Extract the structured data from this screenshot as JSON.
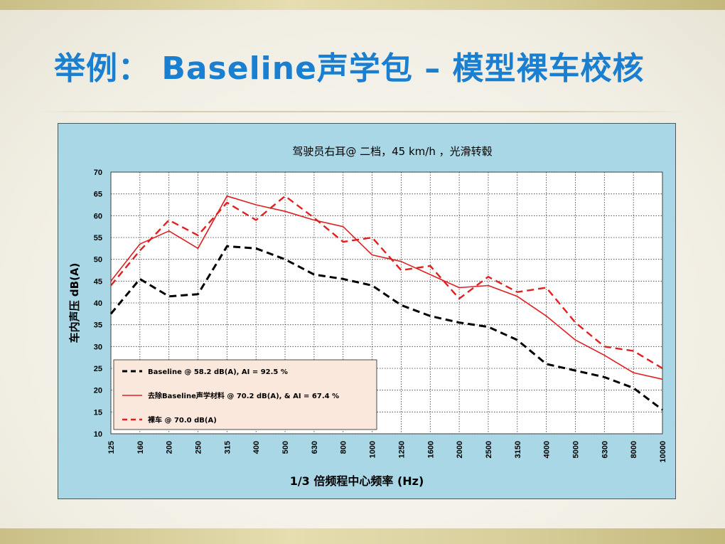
{
  "slide": {
    "title": "举例： Baseline声学包 – 模型裸车校核"
  },
  "colors": {
    "chart_background": "#a9d7e6",
    "plot_background": "#ffffff",
    "legend_background": "#fbe8dc",
    "title_color": "#1a7fd0",
    "series_baseline": "#000000",
    "series_removed": "#e02020",
    "series_bare": "#e02020"
  },
  "chart_data": {
    "type": "line",
    "title": "驾驶员右耳@  二档，45 km/h  ，光滑转毂",
    "xlabel": "1/3 倍频程中心频率 (Hz)",
    "ylabel": "车内声压  dB(A)",
    "categories": [
      "125",
      "160",
      "200",
      "250",
      "315",
      "400",
      "500",
      "630",
      "800",
      "1000",
      "1250",
      "1600",
      "2000",
      "2500",
      "3150",
      "4000",
      "5000",
      "6300",
      "8000",
      "10000"
    ],
    "ylim": [
      10,
      70
    ],
    "yticks": [
      10,
      15,
      20,
      25,
      30,
      35,
      40,
      45,
      50,
      55,
      60,
      65,
      70
    ],
    "grid": true,
    "legend_position": "bottom-left",
    "series": [
      {
        "name": "Baseline @ 58.2 dB(A), AI = 92.5 %",
        "style": "dashed",
        "color": "#000000",
        "values": [
          37.5,
          45.5,
          41.5,
          42,
          53,
          52.5,
          50,
          46.5,
          45.5,
          44,
          39.5,
          37,
          35.5,
          34.5,
          31.5,
          26,
          24.5,
          23,
          20.5,
          15.5
        ]
      },
      {
        "name": "去除Baseline声学材料 @ 70.2 dB(A), & AI = 67.4 %",
        "style": "solid",
        "color": "#e02020",
        "values": [
          45,
          53.5,
          56.5,
          52.5,
          64.5,
          62.5,
          61,
          59,
          57.5,
          51,
          49.5,
          46.5,
          43.5,
          44,
          41.5,
          37,
          31.5,
          28,
          24,
          22.5
        ]
      },
      {
        "name": "裸车 @ 70.0 dB(A)",
        "style": "dashed",
        "color": "#e02020",
        "values": [
          44,
          52,
          59,
          55.5,
          63,
          59,
          64.5,
          59.5,
          54,
          55,
          47.5,
          48.5,
          41,
          46,
          42.5,
          43.5,
          35.5,
          30,
          29,
          25
        ]
      }
    ]
  }
}
